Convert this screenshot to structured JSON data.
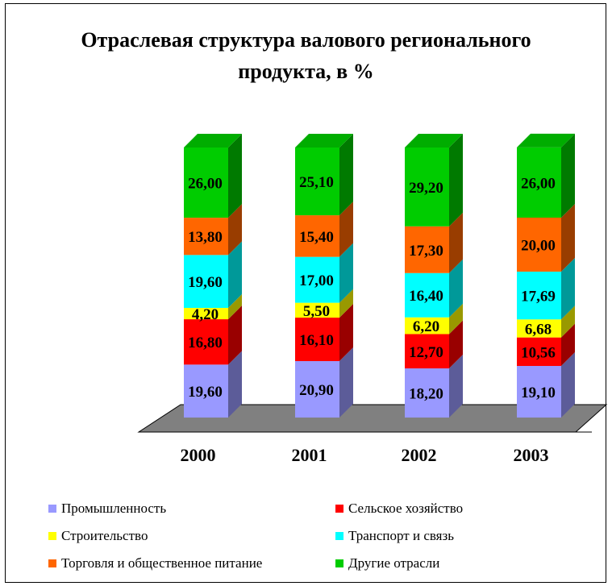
{
  "chart_data": {
    "type": "bar",
    "stacked": true,
    "three_d": true,
    "title": "Отраслевая структура валового регионального продукта, в %",
    "title_lines": [
      "Отраслевая структура валового регионального",
      "продукта, в %"
    ],
    "categories": [
      "2000",
      "2001",
      "2002",
      "2003"
    ],
    "series": [
      {
        "name": "Промышленность",
        "color": "#9999ff",
        "values": [
          19.6,
          20.9,
          18.2,
          19.1
        ],
        "labels": [
          "19,60",
          "20,90",
          "18,20",
          "19,10"
        ]
      },
      {
        "name": "Сельское хозяйство",
        "color": "#ff0000",
        "values": [
          16.8,
          16.1,
          12.7,
          10.56
        ],
        "labels": [
          "16,80",
          "16,10",
          "12,70",
          "10,56"
        ]
      },
      {
        "name": "Строительство",
        "color": "#ffff00",
        "values": [
          4.2,
          5.5,
          6.2,
          6.68
        ],
        "labels": [
          "4,20",
          "5,50",
          "6,20",
          "6,68"
        ]
      },
      {
        "name": "Транспорт и связь",
        "color": "#00ffff",
        "values": [
          19.6,
          17.0,
          16.4,
          17.69
        ],
        "labels": [
          "19,60",
          "17,00",
          "16,40",
          "17,69"
        ]
      },
      {
        "name": "Торговля и общественное питание",
        "color": "#ff6600",
        "values": [
          13.8,
          15.4,
          17.3,
          20.0
        ],
        "labels": [
          "13,80",
          "15,40",
          "17,30",
          "20,00"
        ]
      },
      {
        "name": "Другие отрасли",
        "color": "#00cc00",
        "values": [
          26.0,
          25.1,
          29.2,
          26.0
        ],
        "labels": [
          "26,00",
          "25,10",
          "29,20",
          "26,00"
        ]
      }
    ],
    "ylim": [
      0,
      100
    ],
    "xlabel": "",
    "ylabel": "",
    "grid": false,
    "legend_position": "bottom",
    "floor_color": "#808080"
  }
}
